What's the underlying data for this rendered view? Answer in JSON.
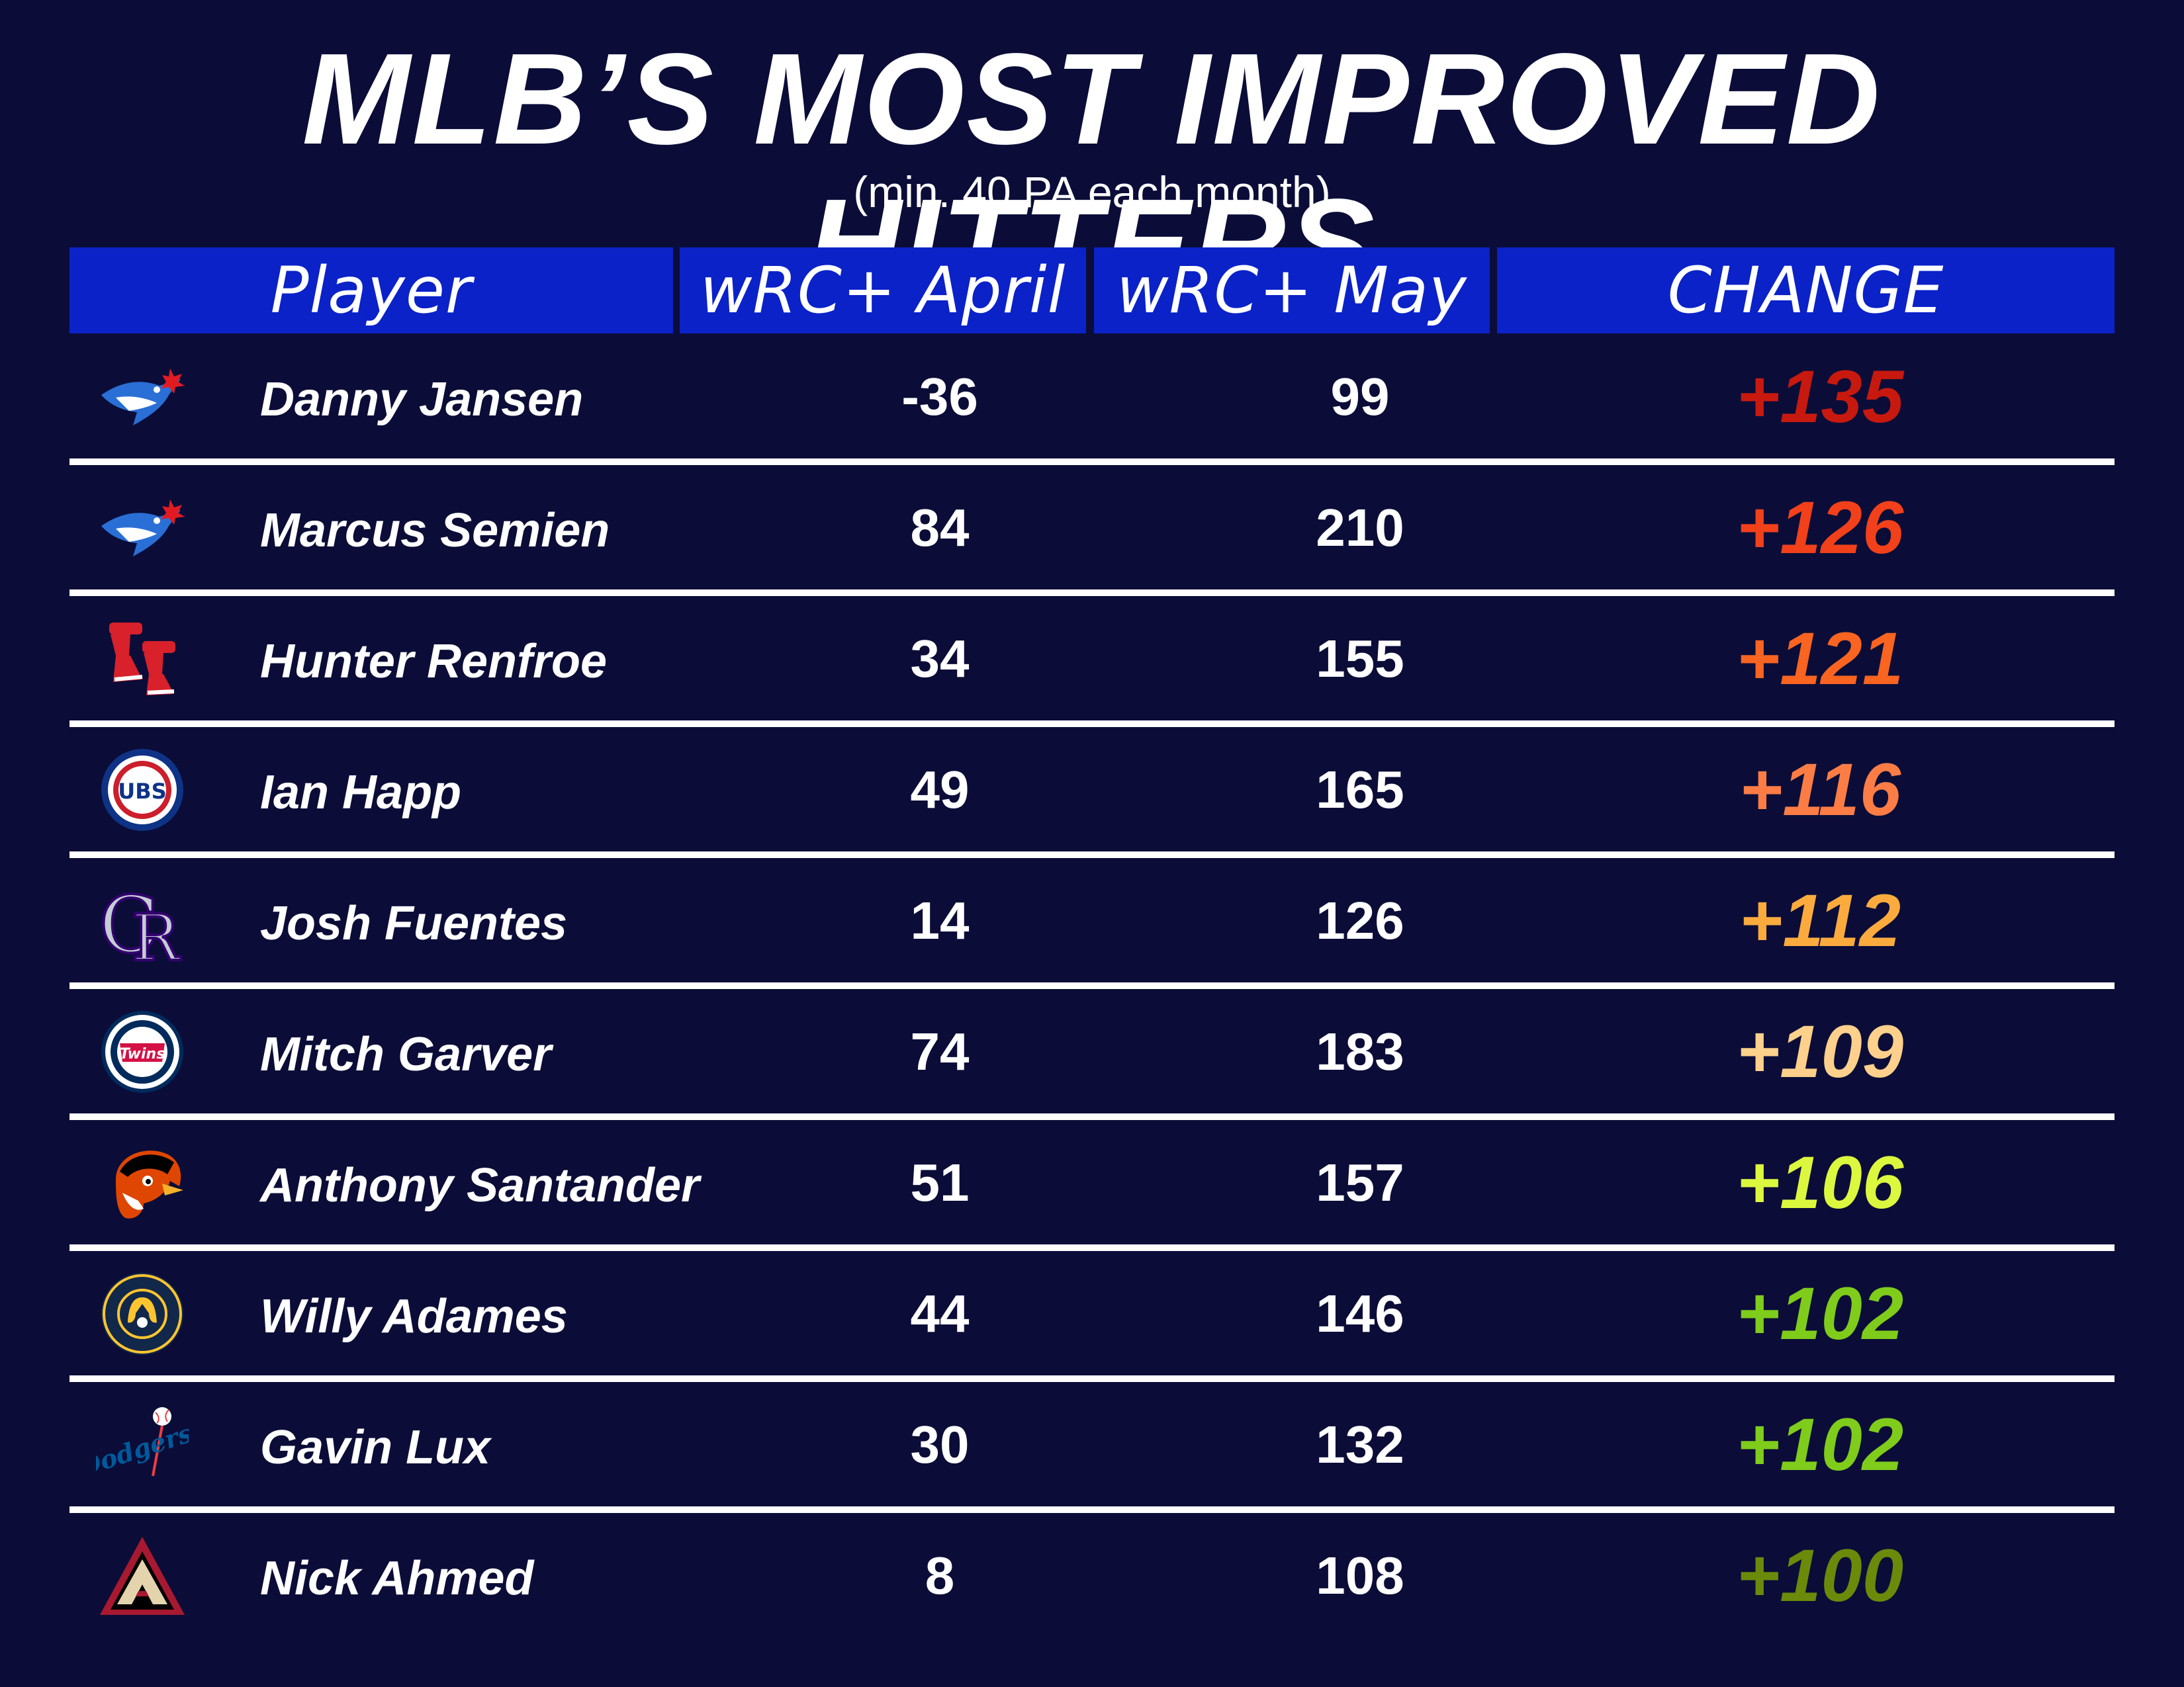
{
  "title": "MLB’S MOST IMPROVED HITTERS",
  "subtitle": "(min. 40 PA each month)",
  "chart_data": {
    "type": "table",
    "columns": [
      "Player",
      "wRC+ April",
      "wRC+ May",
      "CHANGE"
    ],
    "rows": [
      {
        "team_icon": "blue-jays-logo-icon",
        "player": "Danny Jansen",
        "april": "-36",
        "may": "99",
        "change": "+135",
        "change_color": "#c8190f"
      },
      {
        "team_icon": "blue-jays-logo-icon",
        "player": "Marcus Semien",
        "april": "84",
        "may": "210",
        "change": "+126",
        "change_color": "#f2401a"
      },
      {
        "team_icon": "red-sox-logo-icon",
        "player": "Hunter Renfroe",
        "april": "34",
        "may": "155",
        "change": "+121",
        "change_color": "#f96420"
      },
      {
        "team_icon": "cubs-logo-icon",
        "player": "Ian Happ",
        "april": "49",
        "may": "165",
        "change": "+116",
        "change_color": "#fb7d45"
      },
      {
        "team_icon": "rockies-logo-icon",
        "player": "Josh Fuentes",
        "april": "14",
        "may": "126",
        "change": "+112",
        "change_color": "#fbab3e"
      },
      {
        "team_icon": "twins-logo-icon",
        "player": "Mitch Garver",
        "april": "74",
        "may": "183",
        "change": "+109",
        "change_color": "#fdd08b"
      },
      {
        "team_icon": "orioles-logo-icon",
        "player": "Anthony Santander",
        "april": "51",
        "may": "157",
        "change": "+106",
        "change_color": "#dcf83e"
      },
      {
        "team_icon": "brewers-logo-icon",
        "player": "Willy Adames",
        "april": "44",
        "may": "146",
        "change": "+102",
        "change_color": "#7fcc1b"
      },
      {
        "team_icon": "dodgers-logo-icon",
        "player": "Gavin Lux",
        "april": "30",
        "may": "132",
        "change": "+102",
        "change_color": "#7fcc1b"
      },
      {
        "team_icon": "diamondbacks-logo-icon",
        "player": "Nick Ahmed",
        "april": "8",
        "may": "108",
        "change": "+100",
        "change_color": "#6b8a0a"
      }
    ]
  }
}
